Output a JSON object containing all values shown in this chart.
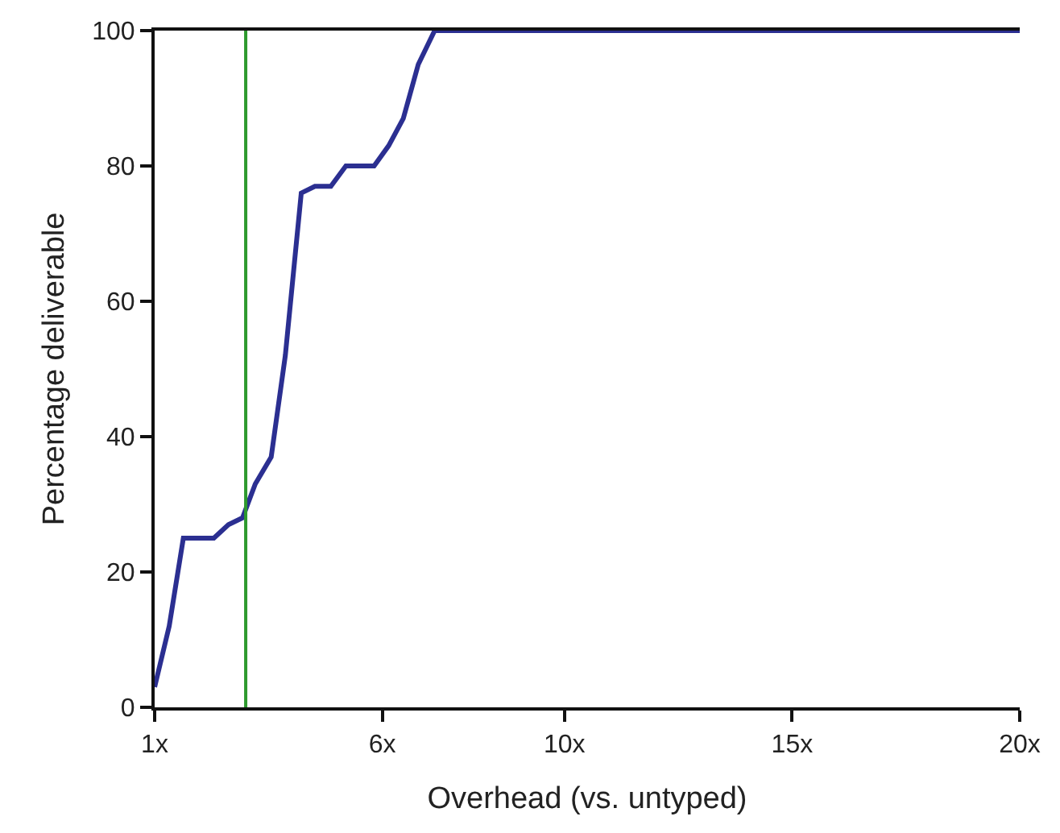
{
  "chart_data": {
    "type": "line",
    "xlabel": "Overhead (vs. untyped)",
    "ylabel": "Percentage deliverable",
    "x": [
      1,
      1.32,
      1.63,
      2.3,
      2.62,
      2.93,
      3.21,
      3.56,
      3.87,
      4.22,
      4.52,
      4.87,
      5.2,
      5.82,
      6.14,
      6.46,
      6.79,
      7.15,
      20
    ],
    "series": [
      {
        "color": "#2b2f91",
        "values": [
          3,
          12,
          25,
          25,
          27,
          28,
          33,
          37,
          52,
          76,
          77,
          77,
          80,
          80,
          83,
          87,
          95,
          100,
          100
        ]
      }
    ],
    "xlim": [
      1,
      20
    ],
    "xticks": [
      {
        "value": 1,
        "label": "1x"
      },
      {
        "value": 6,
        "label": "6x"
      },
      {
        "value": 10,
        "label": "10x"
      },
      {
        "value": 15,
        "label": "15x"
      },
      {
        "value": 20,
        "label": "20x"
      }
    ],
    "ylim": [
      0,
      100
    ],
    "yticks": [
      0,
      20,
      40,
      60,
      80,
      100
    ],
    "ref_lines": [
      {
        "axis": "x",
        "value": 3,
        "color": "#2e9a2e"
      }
    ],
    "marker": "none",
    "line_style": "solid"
  }
}
